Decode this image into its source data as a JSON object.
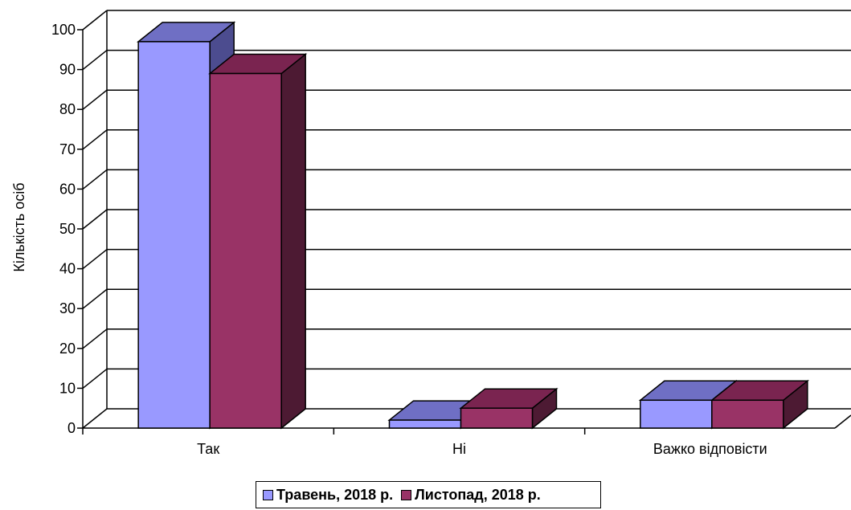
{
  "chart_data": {
    "type": "bar",
    "categories": [
      "Так",
      "Ні",
      "Важко відповісти"
    ],
    "series": [
      {
        "name": "Травень, 2018 р.",
        "values": [
          97,
          2,
          7
        ],
        "color": "#9999FF",
        "top_color": "#6F6FC4",
        "side_color": "#4C4C8F"
      },
      {
        "name": "Листопад, 2018 р.",
        "values": [
          89,
          5,
          7
        ],
        "color": "#993366",
        "top_color": "#7A2450",
        "side_color": "#4D1A33"
      }
    ],
    "ylabel": "Кількість осіб",
    "xlabel": "",
    "ylim": [
      0,
      100
    ],
    "yticks": [
      "0",
      "10",
      "20",
      "30",
      "40",
      "50",
      "60",
      "70",
      "80",
      "90",
      "100"
    ],
    "grid": true,
    "legend_position": "bottom",
    "chart_style": "3d-clustered-column"
  }
}
